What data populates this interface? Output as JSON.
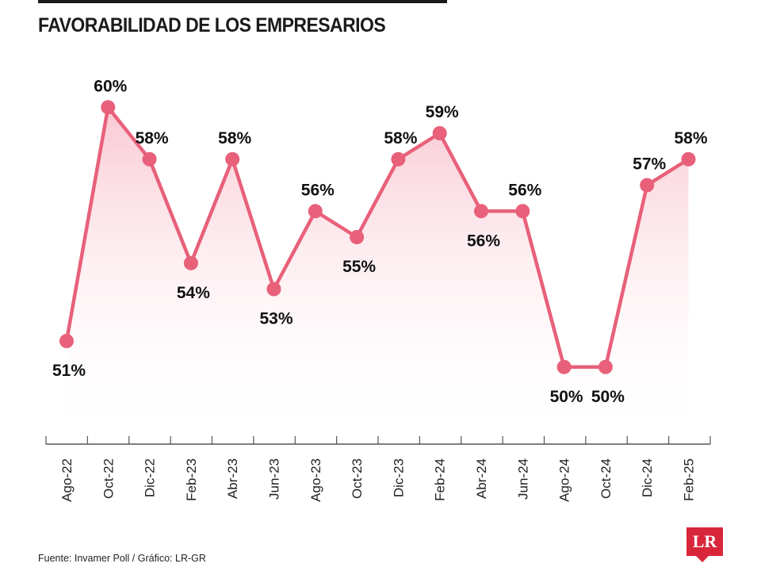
{
  "title": "FAVORABILIDAD DE LOS EMPRESARIOS",
  "source": "Fuente: Invamer Poll / Gráfico: LR-GR",
  "logo": {
    "text": "LR",
    "color": "#d9263b"
  },
  "colors": {
    "line": "#e8607a",
    "marker": "#e8607a",
    "fill_top": "#f7b6c4",
    "axis": "#555555"
  },
  "chart_data": {
    "type": "line",
    "title": "FAVORABILIDAD DE LOS EMPRESARIOS",
    "xlabel": "",
    "ylabel": "",
    "categories": [
      "Ago-22",
      "Oct-22",
      "Dic-22",
      "Feb-23",
      "Abr-23",
      "Jun-23",
      "Ago-23",
      "Oct-23",
      "Dic-23",
      "Feb-24",
      "Abr-24",
      "Jun-24",
      "Ago-24",
      "Oct-24",
      "Dic-24",
      "Feb-25"
    ],
    "values": [
      51,
      60,
      58,
      54,
      58,
      53,
      56,
      55,
      58,
      59,
      56,
      56,
      50,
      50,
      57,
      58
    ],
    "labels": [
      "51%",
      "60%",
      "58%",
      "54%",
      "58%",
      "53%",
      "56%",
      "55%",
      "58%",
      "59%",
      "56%",
      "56%",
      "50%",
      "50%",
      "57%",
      "58%"
    ],
    "label_positions": [
      "below",
      "above",
      "above",
      "below",
      "above",
      "below",
      "above",
      "below",
      "above",
      "above",
      "below",
      "above",
      "below",
      "below",
      "above",
      "above"
    ],
    "unit": "%",
    "area_fill": true,
    "grid": false,
    "legend": "none"
  }
}
